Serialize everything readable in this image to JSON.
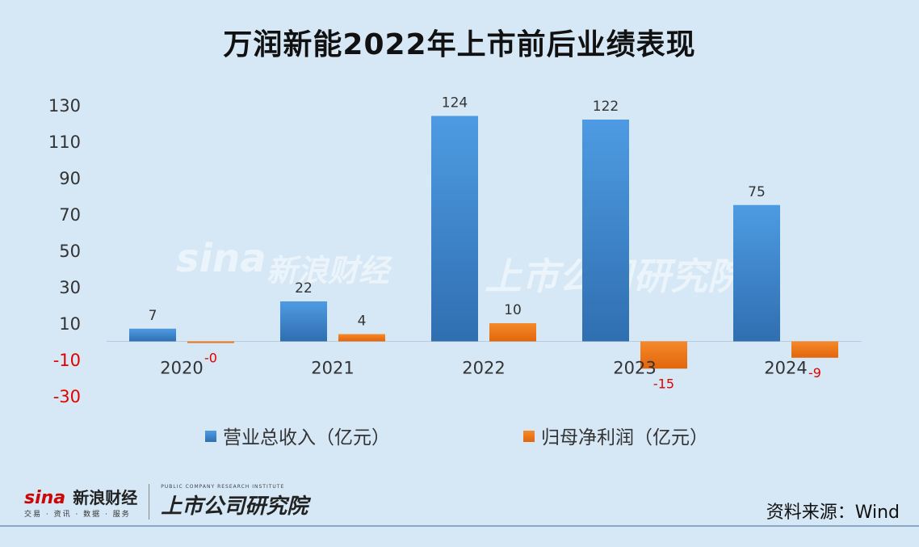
{
  "title": "万润新能2022年上市前后业绩表现",
  "source": "资料来源：Wind",
  "colors": {
    "revenue": "#4a90d9",
    "profit": "#f07a1a",
    "negative_label": "#e00000",
    "background": "#d6e7f5"
  },
  "logos": {
    "sina_en": "sina",
    "sina_cn": "新浪财经",
    "sina_sub": "交易 · 资讯 · 数据 · 服务",
    "institute_cn": "上市公司研究院",
    "institute_en": "PUBLIC COMPANY RESEARCH INSTITUTE"
  },
  "chart_data": {
    "type": "bar",
    "title": "万润新能2022年上市前后业绩表现",
    "categories": [
      "2020",
      "2021",
      "2022",
      "2023",
      "2024"
    ],
    "series": [
      {
        "name": "营业总收入（亿元）",
        "values": [
          7,
          22,
          124,
          122,
          75
        ],
        "labels": [
          "7",
          "22",
          "124",
          "122",
          "75"
        ]
      },
      {
        "name": "归母净利润（亿元）",
        "values": [
          -0.4,
          4,
          10,
          -15,
          -9
        ],
        "labels": [
          "-0",
          "4",
          "10",
          "-15",
          "-9"
        ]
      }
    ],
    "yticks": [
      130,
      110,
      90,
      70,
      50,
      30,
      10,
      -10,
      -30
    ],
    "ylim": [
      -30,
      130
    ],
    "grid": false,
    "legend": "bottom-center"
  }
}
